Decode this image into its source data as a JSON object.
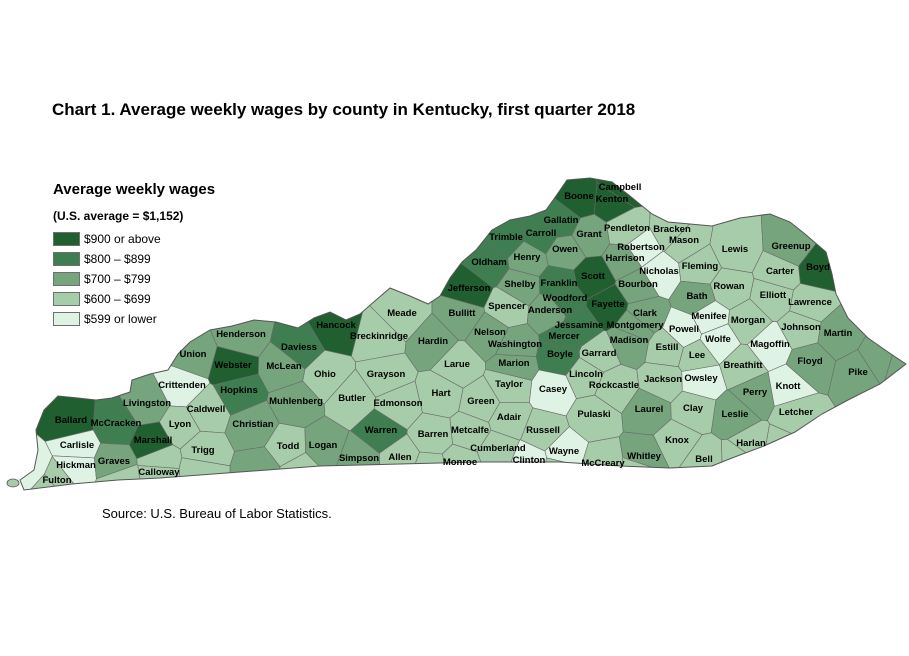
{
  "title": "Chart 1. Average weekly wages by county in Kentucky, first quarter 2018",
  "legend": {
    "title": "Average weekly wages",
    "subtitle": "(U.S. average = $1,152)",
    "items": [
      {
        "label": "$900 or above",
        "color": "#205f30"
      },
      {
        "label": "$800 – $899",
        "color": "#3f7e50"
      },
      {
        "label": "$700 – $799",
        "color": "#75a47d"
      },
      {
        "label": "$600 – $699",
        "color": "#a7cca9"
      },
      {
        "label": "$599 or lower",
        "color": "#dff3e4"
      }
    ]
  },
  "source": "Source: U.S. Bureau of Labor Statistics.",
  "counties": [
    {
      "name": "Boone",
      "cls": 0
    },
    {
      "name": "Campbell",
      "cls": 0
    },
    {
      "name": "Kenton",
      "cls": 0
    },
    {
      "name": "Gallatin",
      "cls": 1
    },
    {
      "name": "Bracken",
      "cls": 3
    },
    {
      "name": "Trimble",
      "cls": 1
    },
    {
      "name": "Carroll",
      "cls": 1
    },
    {
      "name": "Grant",
      "cls": 2
    },
    {
      "name": "Pendleton",
      "cls": 3
    },
    {
      "name": "Mason",
      "cls": 3
    },
    {
      "name": "Lewis",
      "cls": 3
    },
    {
      "name": "Greenup",
      "cls": 2
    },
    {
      "name": "Robertson",
      "cls": 4
    },
    {
      "name": "Owen",
      "cls": 2
    },
    {
      "name": "Henry",
      "cls": 2
    },
    {
      "name": "Oldham",
      "cls": 1
    },
    {
      "name": "Harrison",
      "cls": 2
    },
    {
      "name": "Boyd",
      "cls": 0
    },
    {
      "name": "Scott",
      "cls": 0
    },
    {
      "name": "Nicholas",
      "cls": 4
    },
    {
      "name": "Fleming",
      "cls": 3
    },
    {
      "name": "Carter",
      "cls": 3
    },
    {
      "name": "Jefferson",
      "cls": 0
    },
    {
      "name": "Shelby",
      "cls": 2
    },
    {
      "name": "Franklin",
      "cls": 1
    },
    {
      "name": "Bourbon",
      "cls": 2
    },
    {
      "name": "Rowan",
      "cls": 3
    },
    {
      "name": "Woodford",
      "cls": 1
    },
    {
      "name": "Fayette",
      "cls": 0
    },
    {
      "name": "Bath",
      "cls": 2
    },
    {
      "name": "Elliott",
      "cls": 3
    },
    {
      "name": "Lawrence",
      "cls": 3
    },
    {
      "name": "Spencer",
      "cls": 3
    },
    {
      "name": "Anderson",
      "cls": 2
    },
    {
      "name": "Clark",
      "cls": 2
    },
    {
      "name": "Menifee",
      "cls": 4
    },
    {
      "name": "Meade",
      "cls": 3
    },
    {
      "name": "Bullitt",
      "cls": 2
    },
    {
      "name": "Morgan",
      "cls": 3
    },
    {
      "name": "Jessamine",
      "cls": 1
    },
    {
      "name": "Montgomery",
      "cls": 2
    },
    {
      "name": "Powell",
      "cls": 4
    },
    {
      "name": "Johnson",
      "cls": 3
    },
    {
      "name": "Hancock",
      "cls": 0
    },
    {
      "name": "Henderson",
      "cls": 2
    },
    {
      "name": "Breckinridge",
      "cls": 3
    },
    {
      "name": "Nelson",
      "cls": 2
    },
    {
      "name": "Mercer",
      "cls": 1
    },
    {
      "name": "Martin",
      "cls": 2
    },
    {
      "name": "Hardin",
      "cls": 2
    },
    {
      "name": "Madison",
      "cls": 2
    },
    {
      "name": "Wolfe",
      "cls": 4
    },
    {
      "name": "Washington",
      "cls": 2
    },
    {
      "name": "Magoffin",
      "cls": 4
    },
    {
      "name": "Daviess",
      "cls": 1
    },
    {
      "name": "Union",
      "cls": 2
    },
    {
      "name": "Boyle",
      "cls": 1
    },
    {
      "name": "Garrard",
      "cls": 3
    },
    {
      "name": "Estill",
      "cls": 3
    },
    {
      "name": "Lee",
      "cls": 3
    },
    {
      "name": "Webster",
      "cls": 0
    },
    {
      "name": "McLean",
      "cls": 2
    },
    {
      "name": "Marion",
      "cls": 2
    },
    {
      "name": "Larue",
      "cls": 3
    },
    {
      "name": "Floyd",
      "cls": 2
    },
    {
      "name": "Breathitt",
      "cls": 3
    },
    {
      "name": "Ohio",
      "cls": 3
    },
    {
      "name": "Grayson",
      "cls": 3
    },
    {
      "name": "Lincoln",
      "cls": 3
    },
    {
      "name": "Crittenden",
      "cls": 4
    },
    {
      "name": "Jackson",
      "cls": 3
    },
    {
      "name": "Owsley",
      "cls": 4
    },
    {
      "name": "Pike",
      "cls": 2
    },
    {
      "name": "Taylor",
      "cls": 3
    },
    {
      "name": "Hopkins",
      "cls": 1
    },
    {
      "name": "Rockcastle",
      "cls": 3
    },
    {
      "name": "Knott",
      "cls": 4
    },
    {
      "name": "Casey",
      "cls": 4
    },
    {
      "name": "Hart",
      "cls": 3
    },
    {
      "name": "Perry",
      "cls": 2
    },
    {
      "name": "Livingston",
      "cls": 2
    },
    {
      "name": "Butler",
      "cls": 3
    },
    {
      "name": "Green",
      "cls": 3
    },
    {
      "name": "Muhlenberg",
      "cls": 2
    },
    {
      "name": "Caldwell",
      "cls": 3
    },
    {
      "name": "Edmonson",
      "cls": 3
    },
    {
      "name": "Laurel",
      "cls": 2
    },
    {
      "name": "Clay",
      "cls": 3
    },
    {
      "name": "Ballard",
      "cls": 0
    },
    {
      "name": "Adair",
      "cls": 3
    },
    {
      "name": "Pulaski",
      "cls": 3
    },
    {
      "name": "Leslie",
      "cls": 2
    },
    {
      "name": "Letcher",
      "cls": 3
    },
    {
      "name": "McCracken",
      "cls": 1
    },
    {
      "name": "Lyon",
      "cls": 3
    },
    {
      "name": "Christian",
      "cls": 2
    },
    {
      "name": "Russell",
      "cls": 3
    },
    {
      "name": "Warren",
      "cls": 1
    },
    {
      "name": "Metcalfe",
      "cls": 3
    },
    {
      "name": "Barren",
      "cls": 3
    },
    {
      "name": "Carlisle",
      "cls": 4
    },
    {
      "name": "Knox",
      "cls": 3
    },
    {
      "name": "Marshall",
      "cls": 0
    },
    {
      "name": "Trigg",
      "cls": 3
    },
    {
      "name": "Todd",
      "cls": 3
    },
    {
      "name": "Logan",
      "cls": 2
    },
    {
      "name": "Cumberland",
      "cls": 3
    },
    {
      "name": "Harlan",
      "cls": 3
    },
    {
      "name": "Simpson",
      "cls": 2
    },
    {
      "name": "Wayne",
      "cls": 4
    },
    {
      "name": "Hickman",
      "cls": 4
    },
    {
      "name": "Graves",
      "cls": 2
    },
    {
      "name": "Allen",
      "cls": 3
    },
    {
      "name": "Clinton",
      "cls": 4
    },
    {
      "name": "Monroe",
      "cls": 3
    },
    {
      "name": "McCreary",
      "cls": 3
    },
    {
      "name": "Whitley",
      "cls": 2
    },
    {
      "name": "Bell",
      "cls": 3
    },
    {
      "name": "Calloway",
      "cls": 3
    },
    {
      "name": "Fulton",
      "cls": 3
    }
  ]
}
